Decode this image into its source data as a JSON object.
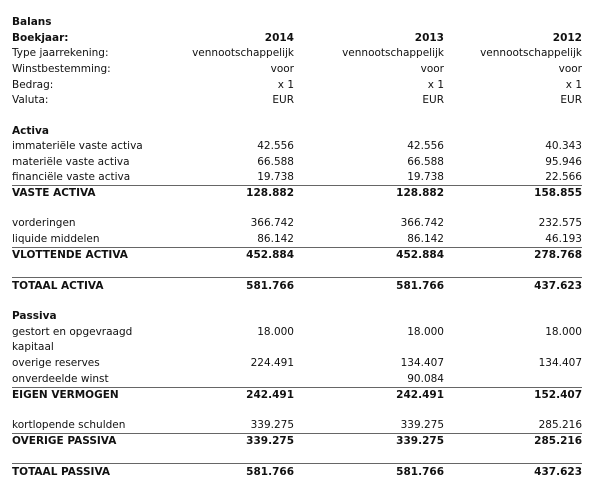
{
  "title": "Balans",
  "header": {
    "label": "Boekjaar:",
    "years": [
      "2014",
      "2013",
      "2012"
    ]
  },
  "meta": [
    {
      "label": "Type jaarrekening:",
      "values": [
        "vennootschappelijk",
        "vennootschappelijk",
        "vennootschappelijk"
      ]
    },
    {
      "label": "Winstbestemming:",
      "values": [
        "voor",
        "voor",
        "voor"
      ]
    },
    {
      "label": "Bedrag:",
      "values": [
        "x 1",
        "x 1",
        "x 1"
      ]
    },
    {
      "label": "Valuta:",
      "values": [
        "EUR",
        "EUR",
        "EUR"
      ]
    }
  ],
  "activa": {
    "heading": "Activa",
    "vaste": [
      {
        "label": "immateriële vaste activa",
        "values": [
          "42.556",
          "42.556",
          "40.343"
        ]
      },
      {
        "label": "materiële vaste activa",
        "values": [
          "66.588",
          "66.588",
          "95.946"
        ]
      },
      {
        "label": "financiële vaste activa",
        "values": [
          "19.738",
          "19.738",
          "22.566"
        ]
      }
    ],
    "vaste_total": {
      "label": "VASTE ACTIVA",
      "values": [
        "128.882",
        "128.882",
        "158.855"
      ]
    },
    "vlottende": [
      {
        "label": "vorderingen",
        "values": [
          "366.742",
          "366.742",
          "232.575"
        ]
      },
      {
        "label": "liquide middelen",
        "values": [
          "86.142",
          "86.142",
          "46.193"
        ]
      }
    ],
    "vlottende_total": {
      "label": "VLOTTENDE ACTIVA",
      "values": [
        "452.884",
        "452.884",
        "278.768"
      ]
    },
    "totaal": {
      "label": "TOTAAL ACTIVA",
      "values": [
        "581.766",
        "581.766",
        "437.623"
      ]
    }
  },
  "passiva": {
    "heading": "Passiva",
    "eigen": [
      {
        "label": "gestort en opgevraagd",
        "values": [
          "18.000",
          "18.000",
          "18.000"
        ]
      },
      {
        "label": "kapitaal",
        "values": [
          "",
          "",
          ""
        ]
      },
      {
        "label": "overige reserves",
        "values": [
          "224.491",
          "134.407",
          "134.407"
        ]
      },
      {
        "label": "onverdeelde winst",
        "values": [
          "",
          "90.084",
          ""
        ]
      }
    ],
    "eigen_total": {
      "label": "EIGEN VERMOGEN",
      "values": [
        "242.491",
        "242.491",
        "152.407"
      ]
    },
    "overige": [
      {
        "label": "kortlopende schulden",
        "values": [
          "339.275",
          "339.275",
          "285.216"
        ]
      }
    ],
    "overige_total": {
      "label": "OVERIGE PASSIVA",
      "values": [
        "339.275",
        "339.275",
        "285.216"
      ]
    },
    "totaal": {
      "label": "TOTAAL PASSIVA",
      "values": [
        "581.766",
        "581.766",
        "437.623"
      ]
    }
  }
}
